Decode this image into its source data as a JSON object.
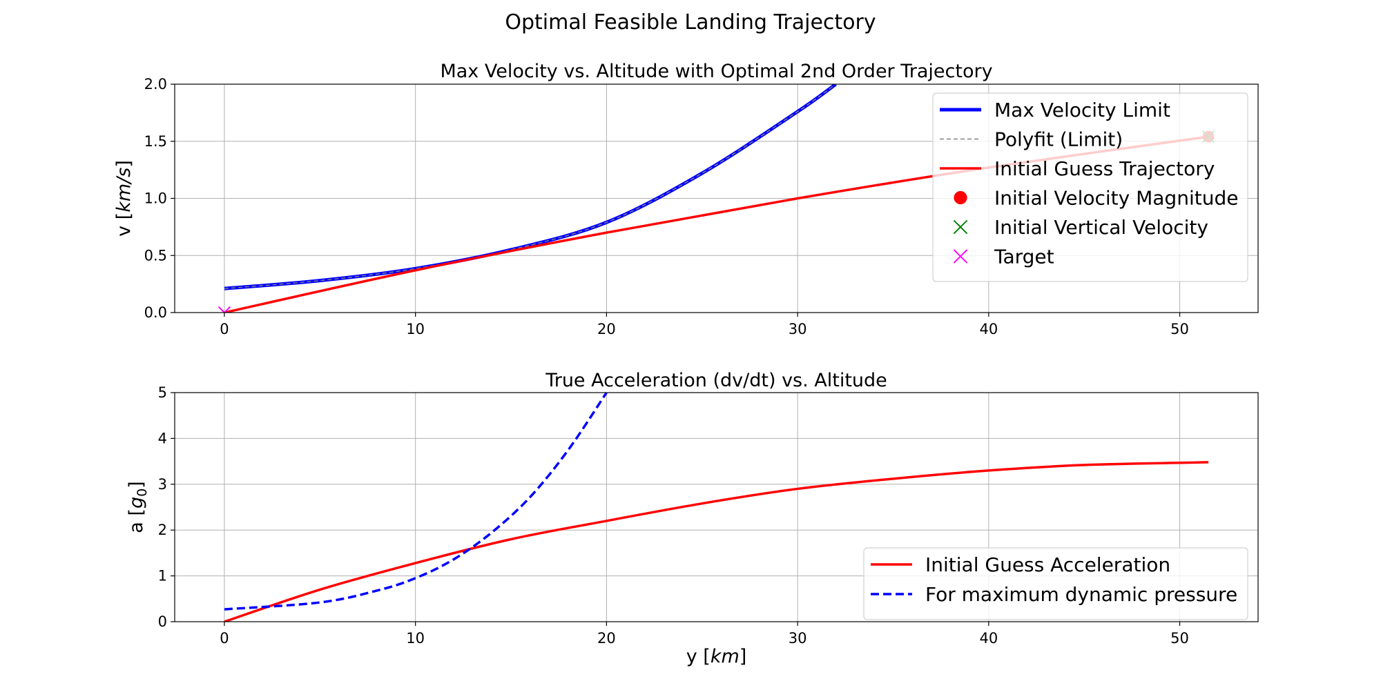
{
  "figure": {
    "suptitle": "Optimal Feasible Landing Trajectory"
  },
  "chart_data": [
    {
      "type": "line",
      "title": "Max Velocity vs. Altitude with Optimal 2nd Order Trajectory",
      "xlabel": "y [km]",
      "ylabel": "v [km/s]",
      "xlim": [
        -2.6,
        54.1
      ],
      "ylim": [
        0,
        2.0
      ],
      "xticks": [
        0,
        10,
        20,
        30,
        40,
        50
      ],
      "yticks": [
        0.0,
        0.5,
        1.0,
        1.5,
        2.0
      ],
      "ytick_labels": [
        "0.0",
        "0.5",
        "1.0",
        "1.5",
        "2.0"
      ],
      "grid": true,
      "legend_position": "upper right",
      "series": [
        {
          "name": "Max Velocity Limit",
          "color": "#0000ff",
          "style": "solid-thick",
          "x": [
            0,
            5,
            10,
            15,
            20,
            25,
            30,
            32
          ],
          "y": [
            0.21,
            0.28,
            0.385,
            0.55,
            0.79,
            1.22,
            1.76,
            2.0
          ]
        },
        {
          "name": "Polyfit (Limit)",
          "color": "#808080",
          "style": "dashed-thin",
          "x": [
            0,
            5,
            10,
            15,
            20,
            25,
            30,
            32
          ],
          "y": [
            0.21,
            0.28,
            0.385,
            0.55,
            0.79,
            1.22,
            1.76,
            2.0
          ]
        },
        {
          "name": "Initial Guess Trajectory",
          "color": "#ff0000",
          "style": "solid",
          "x": [
            0,
            10,
            20,
            30,
            40,
            51.5
          ],
          "y": [
            0,
            0.37,
            0.7,
            1.0,
            1.27,
            1.54
          ]
        },
        {
          "name": "Initial Velocity Magnitude",
          "color": "#ff0000",
          "marker": "circle",
          "x": [
            51.5
          ],
          "y": [
            1.54
          ]
        },
        {
          "name": "Initial Vertical Velocity",
          "color": "#008000",
          "marker": "x",
          "x": [
            51.5
          ],
          "y": [
            1.54
          ]
        },
        {
          "name": "Target",
          "color": "#ff00ff",
          "marker": "x",
          "x": [
            0
          ],
          "y": [
            0
          ]
        }
      ]
    },
    {
      "type": "line",
      "title": "True Acceleration (dv/dt) vs. Altitude",
      "xlabel": "y [km]",
      "ylabel": "a [g0]",
      "xlim": [
        -2.6,
        54.1
      ],
      "ylim": [
        0,
        5
      ],
      "xticks": [
        0,
        10,
        20,
        30,
        40,
        50
      ],
      "yticks": [
        0,
        1,
        2,
        3,
        4,
        5
      ],
      "ytick_labels": [
        "0",
        "1",
        "2",
        "3",
        "4",
        "5"
      ],
      "grid": true,
      "legend_position": "lower right",
      "series": [
        {
          "name": "Initial Guess Acceleration",
          "color": "#ff0000",
          "style": "solid",
          "x": [
            0,
            5,
            10,
            15,
            20,
            25,
            30,
            35,
            40,
            45,
            51.5
          ],
          "y": [
            0,
            0.7,
            1.28,
            1.8,
            2.2,
            2.58,
            2.9,
            3.12,
            3.3,
            3.42,
            3.48
          ]
        },
        {
          "name": "For maximum dynamic pressure",
          "color": "#0000ff",
          "style": "dashed",
          "x": [
            0,
            5,
            8,
            10,
            12,
            14,
            16,
            18,
            20
          ],
          "y": [
            0.27,
            0.42,
            0.68,
            0.95,
            1.36,
            1.95,
            2.72,
            3.75,
            5.0
          ]
        }
      ]
    }
  ]
}
